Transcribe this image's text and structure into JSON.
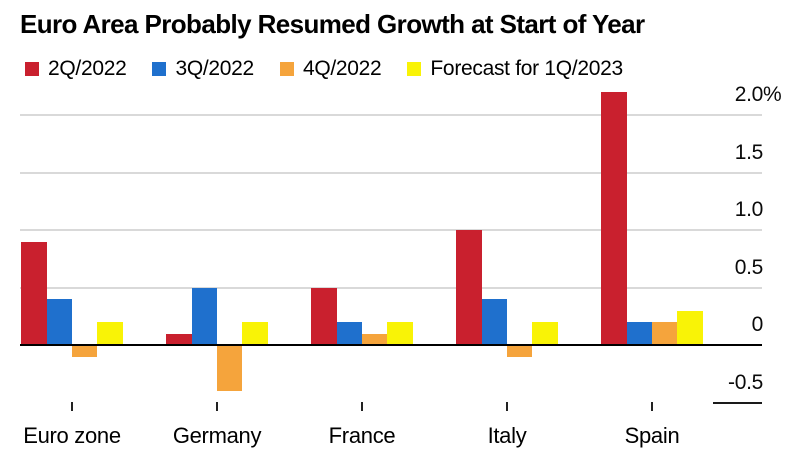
{
  "title": "Euro Area Probably Resumed Growth at Start of Year",
  "legend": [
    {
      "label": "2Q/2022",
      "color": "#c9202e"
    },
    {
      "label": "3Q/2022",
      "color": "#1f70cd"
    },
    {
      "label": "4Q/2022",
      "color": "#f5a43c"
    },
    {
      "label": "Forecast for 1Q/2023",
      "color": "#f9f306"
    }
  ],
  "chart_data": {
    "type": "bar",
    "title": "Euro Area Probably Resumed Growth at Start of Year",
    "categories": [
      "Euro zone",
      "Germany",
      "France",
      "Italy",
      "Spain"
    ],
    "series": [
      {
        "name": "2Q/2022",
        "color": "#c9202e",
        "values": [
          0.9,
          0.1,
          0.5,
          1.0,
          2.2
        ]
      },
      {
        "name": "3Q/2022",
        "color": "#1f70cd",
        "values": [
          0.4,
          0.5,
          0.2,
          0.4,
          0.2
        ]
      },
      {
        "name": "4Q/2022",
        "color": "#f5a43c",
        "values": [
          -0.1,
          -0.4,
          0.1,
          -0.1,
          0.2
        ]
      },
      {
        "name": "Forecast for 1Q/2023",
        "color": "#f9f306",
        "values": [
          0.2,
          0.2,
          0.2,
          0.2,
          0.3
        ]
      }
    ],
    "xlabel": "",
    "ylabel": "",
    "unit_suffix": "%",
    "yticks": [
      2.0,
      1.5,
      1.0,
      0.5,
      0,
      -0.5
    ],
    "ytick_labels": [
      "2.0",
      "1.5",
      "1.0",
      "0.5",
      "0",
      "-0.5"
    ],
    "ylim": [
      -0.5,
      2.25
    ],
    "grid": "horizontal",
    "grid_color": "#d9d9d9",
    "zero_line_color": "#000000",
    "legend_position": "top"
  }
}
